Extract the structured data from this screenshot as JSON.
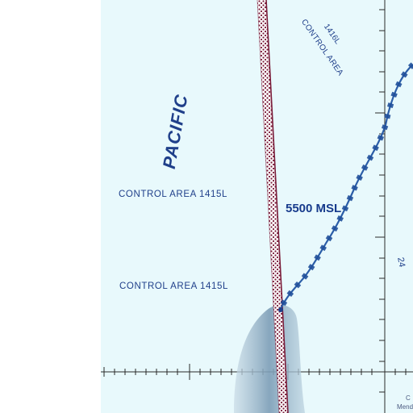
{
  "map": {
    "ocean_label": "PACIFIC",
    "control_area_left_1": "CONTROL AREA 1415L",
    "control_area_left_2": "CONTROL AREA 1415L",
    "control_area_top_line1": "CONTROL AREA",
    "control_area_top_line2": "1416L",
    "altitude_label": "5500 MSL",
    "edge_number": "24",
    "corner_text_1": "C",
    "corner_text_2": "Mend"
  },
  "colors": {
    "water": "#e8f9fc",
    "land_margin": "#ffffff",
    "boundary_line": "#2b5ea8",
    "airspace_band": "#7a1d3a",
    "label_text": "#1f3f8a",
    "shadow_shape": "#8aa6bd"
  }
}
